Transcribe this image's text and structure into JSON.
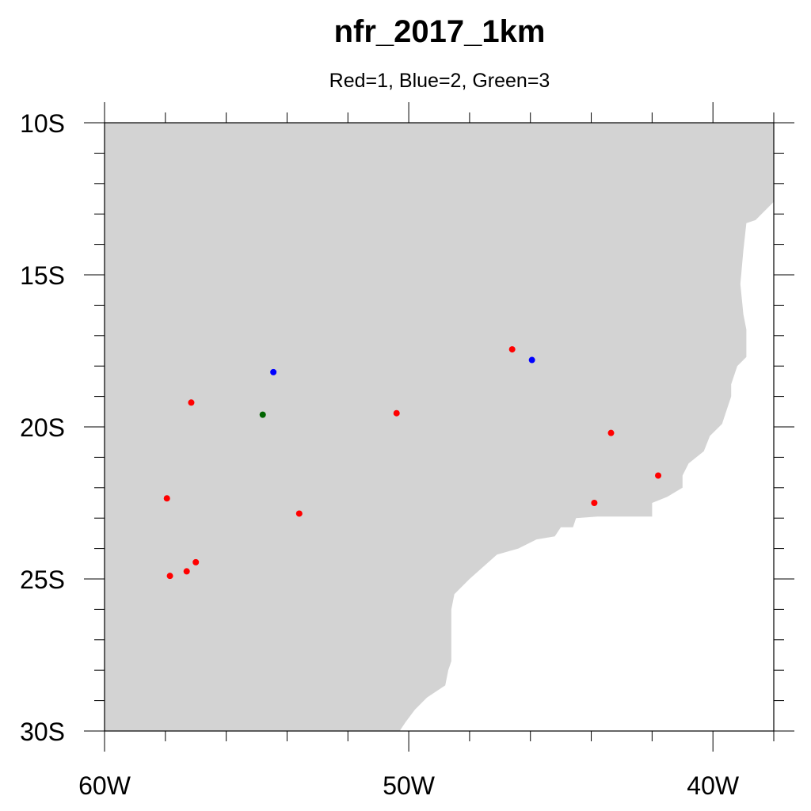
{
  "title": "nfr_2017_1km",
  "subtitle": "Red=1, Blue=2, Green=3",
  "colors": {
    "land": "#d3d3d3",
    "ocean": "#ffffff",
    "1": "#ff0000",
    "2": "#0000ff",
    "3": "#006400"
  },
  "chart_data": {
    "type": "scatter",
    "title": "nfr_2017_1km",
    "subtitle": "Red=1, Blue=2, Green=3",
    "xlim": [
      -60,
      -38
    ],
    "ylim": [
      -30,
      -10
    ],
    "x_ticks": [
      {
        "value": -60,
        "label": "60W"
      },
      {
        "value": -50,
        "label": "50W"
      },
      {
        "value": -40,
        "label": "40W"
      }
    ],
    "y_ticks": [
      {
        "value": -10,
        "label": "10S"
      },
      {
        "value": -15,
        "label": "15S"
      },
      {
        "value": -20,
        "label": "20S"
      },
      {
        "value": -25,
        "label": "25S"
      },
      {
        "value": -30,
        "label": "30S"
      }
    ],
    "minor_step_x": 2,
    "minor_step_y": 1,
    "grid": false,
    "points": [
      {
        "lon": -54.45,
        "lat": -18.2,
        "class": 2
      },
      {
        "lon": -45.95,
        "lat": -17.8,
        "class": 2
      },
      {
        "lon": -54.8,
        "lat": -19.6,
        "class": 3
      },
      {
        "lon": -57.15,
        "lat": -19.2,
        "class": 1
      },
      {
        "lon": -46.6,
        "lat": -17.45,
        "class": 1
      },
      {
        "lon": -50.4,
        "lat": -19.55,
        "class": 1
      },
      {
        "lon": -43.35,
        "lat": -20.2,
        "class": 1
      },
      {
        "lon": -41.8,
        "lat": -21.6,
        "class": 1
      },
      {
        "lon": -43.9,
        "lat": -22.5,
        "class": 1
      },
      {
        "lon": -53.6,
        "lat": -22.85,
        "class": 1
      },
      {
        "lon": -57.95,
        "lat": -22.35,
        "class": 1
      },
      {
        "lon": -57.0,
        "lat": -24.45,
        "class": 1
      },
      {
        "lon": -57.3,
        "lat": -24.75,
        "class": 1
      },
      {
        "lon": -57.85,
        "lat": -24.9,
        "class": 1
      }
    ],
    "coastline": [
      [
        -38.0,
        -12.6
      ],
      [
        -38.6,
        -13.2
      ],
      [
        -38.9,
        -13.3
      ],
      [
        -39.0,
        -14.2
      ],
      [
        -39.1,
        -15.3
      ],
      [
        -39.0,
        -16.3
      ],
      [
        -38.9,
        -16.8
      ],
      [
        -38.9,
        -17.7
      ],
      [
        -39.2,
        -18.0
      ],
      [
        -39.4,
        -18.6
      ],
      [
        -39.4,
        -19.0
      ],
      [
        -39.7,
        -19.9
      ],
      [
        -40.1,
        -20.3
      ],
      [
        -40.3,
        -20.8
      ],
      [
        -40.8,
        -21.2
      ],
      [
        -41.0,
        -21.6
      ],
      [
        -41.0,
        -22.0
      ],
      [
        -41.5,
        -22.3
      ],
      [
        -42.0,
        -22.5
      ],
      [
        -42.0,
        -22.95
      ],
      [
        -43.2,
        -22.95
      ],
      [
        -43.8,
        -22.95
      ],
      [
        -44.5,
        -23.0
      ],
      [
        -44.6,
        -23.3
      ],
      [
        -45.0,
        -23.3
      ],
      [
        -45.2,
        -23.6
      ],
      [
        -45.8,
        -23.7
      ],
      [
        -46.4,
        -24.0
      ],
      [
        -47.1,
        -24.2
      ],
      [
        -48.0,
        -25.0
      ],
      [
        -48.5,
        -25.5
      ],
      [
        -48.6,
        -26.0
      ],
      [
        -48.6,
        -27.0
      ],
      [
        -48.6,
        -27.7
      ],
      [
        -48.7,
        -28.0
      ],
      [
        -48.8,
        -28.5
      ],
      [
        -49.4,
        -28.9
      ],
      [
        -49.8,
        -29.3
      ],
      [
        -50.1,
        -29.7
      ],
      [
        -50.3,
        -30.0
      ]
    ]
  }
}
